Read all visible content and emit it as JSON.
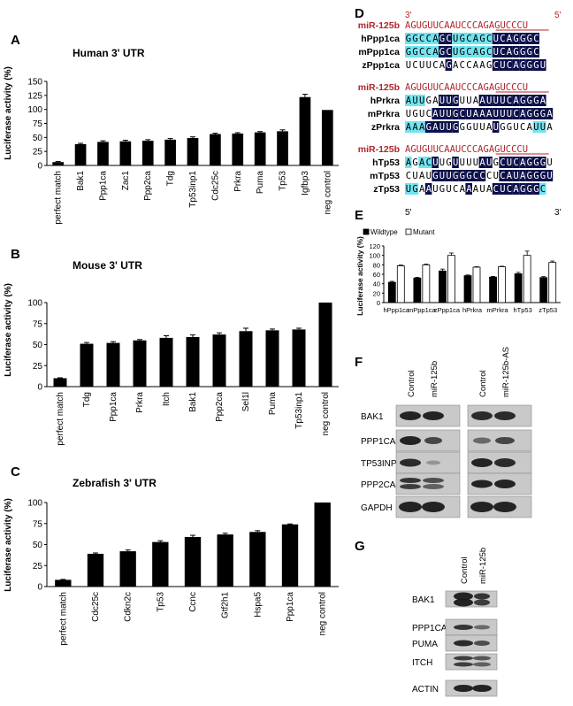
{
  "panels": {
    "A": "A",
    "B": "B",
    "C": "C",
    "D": "D",
    "E": "E",
    "F": "F",
    "G": "G"
  },
  "chart_data": [
    {
      "id": "A",
      "type": "bar",
      "title": "Human 3' UTR",
      "ylabel": "Luciferase activity (%)",
      "ylim": [
        0,
        150
      ],
      "yticks": [
        0,
        25,
        50,
        75,
        100,
        125,
        150
      ],
      "categories": [
        "perfect match",
        "Bak1",
        "Ppp1ca",
        "Zac1",
        "Ppp2ca",
        "Tdg",
        "Tp53inp1",
        "Cdc25c",
        "Prkra",
        "Puma",
        "Tp53",
        "Igfbp3",
        "neg control"
      ],
      "values": [
        6,
        38,
        42,
        43,
        44,
        46,
        49,
        56,
        57,
        59,
        61,
        122,
        99
      ],
      "errors": [
        1,
        1.5,
        2,
        2,
        2,
        2,
        2,
        1.5,
        1.5,
        1.5,
        2.5,
        5,
        0
      ],
      "grid": false
    },
    {
      "id": "B",
      "type": "bar",
      "title": "Mouse 3' UTR",
      "ylabel": "Luciferase activity (%)",
      "ylim": [
        0,
        100
      ],
      "yticks": [
        0,
        25,
        50,
        75,
        100
      ],
      "categories": [
        "perfect match",
        "Tdg",
        "Ppp1ca",
        "Prkra",
        "Itch",
        "Bak1",
        "Ppp2ca",
        "Sel1l",
        "Puma",
        "Tp53inp1",
        "neg control"
      ],
      "values": [
        10,
        51,
        52,
        55,
        58,
        59,
        62,
        66,
        67,
        68,
        100
      ],
      "errors": [
        0.5,
        1.5,
        1.5,
        1,
        2.5,
        2.5,
        2,
        3.5,
        1.5,
        1.5,
        0
      ],
      "grid": false
    },
    {
      "id": "C",
      "type": "bar",
      "title": "Zebrafish 3' UTR",
      "ylabel": "Luciferase activity (%)",
      "ylim": [
        0,
        100
      ],
      "yticks": [
        0,
        25,
        50,
        75,
        100
      ],
      "categories": [
        "perfect match",
        "Cdc25c",
        "Cdkn2c",
        "Tp53",
        "Ccnc",
        "Gtf2h1",
        "Hspa5",
        "Ppp1ca",
        "neg control"
      ],
      "values": [
        8,
        39,
        42,
        53,
        59,
        62,
        65,
        74,
        100
      ],
      "errors": [
        0.5,
        1,
        1.5,
        1.5,
        2,
        1.5,
        1.5,
        0.5,
        0
      ],
      "grid": false
    },
    {
      "id": "E",
      "type": "bar",
      "ylabel": "Luciferase activity (%)",
      "ylim": [
        0,
        120
      ],
      "yticks": [
        0,
        20,
        40,
        60,
        80,
        100,
        120
      ],
      "categories": [
        "hPpp1ca",
        "mPpp1ca",
        "zPpp1ca",
        "hPrkra",
        "mPrkra",
        "hTp53",
        "zTp53"
      ],
      "series": [
        {
          "name": "Wildtype",
          "values": [
            43,
            52,
            67,
            57,
            54,
            61,
            53
          ],
          "errors": [
            2,
            1.5,
            4,
            1.5,
            1.5,
            3,
            2
          ]
        },
        {
          "name": "Mutant",
          "values": [
            78,
            80,
            100,
            75,
            76,
            100,
            85
          ],
          "errors": [
            1.5,
            1.5,
            5,
            1,
            1,
            9,
            3
          ]
        }
      ],
      "legend": "top-left",
      "grid": false
    }
  ],
  "alignment": {
    "ends_top": [
      "3'",
      "5'"
    ],
    "ends_bottom": [
      "5'",
      "3'"
    ],
    "groups": [
      {
        "mirna": "miR-125b",
        "mirna_seq": "AGUGUUCAAUCCCAGAGUCCCU",
        "rows": [
          {
            "name": "hPpp1ca",
            "seq": "GGCCAGCUGCAGCUCAGGGC"
          },
          {
            "name": "mPpp1ca",
            "seq": "GGCCAGCUGCAGCUCAGGGC"
          },
          {
            "name": "zPpp1ca",
            "seq": "UCUUCAGACCAAGCUCAGGGU"
          }
        ]
      },
      {
        "mirna": "miR-125b",
        "mirna_seq": "AGUGUUCAAUCCCAGAGUCCCU",
        "rows": [
          {
            "name": "hPrkra",
            "seq": "AUUGAUUGUUAAUUUCAGGGA"
          },
          {
            "name": "mPrkra",
            "seq": "UGUCAUUGCUAAAUUUCAGGGA"
          },
          {
            "name": "zPrkra",
            "seq": "AAAGAUUGGGUUAUGGUCAUUA"
          }
        ]
      },
      {
        "mirna": "miR-125b",
        "mirna_seq": "AGUGUUCAAUCCCAGAGUCCCU",
        "rows": [
          {
            "name": "hTp53",
            "seq": "AGACUUGUUUUAUGCUCAGGGU"
          },
          {
            "name": "mTp53",
            "seq": "CUAUGUUGGGCCCUCAUAGGGU"
          },
          {
            "name": "zTp53",
            "seq": "UGAAUGUCAAAUACUCAGGGC"
          }
        ]
      }
    ]
  },
  "blotF": {
    "headers": [
      "Control",
      "miR-125b",
      "Control",
      "miR-125b-AS"
    ],
    "rows": [
      "BAK1",
      "PPP1CA",
      "TP53INP1",
      "PPP2CA",
      "GAPDH"
    ]
  },
  "blotG": {
    "headers": [
      "Control",
      "miR-125b"
    ],
    "rows": [
      "BAK1",
      "PPP1CA",
      "PUMA",
      "ITCH",
      "ACTIN"
    ]
  },
  "colors": {
    "mirna": "#b0262c",
    "cyan": "#6fe3ef",
    "navy": "#0b0f4a",
    "bar": "#000000"
  }
}
